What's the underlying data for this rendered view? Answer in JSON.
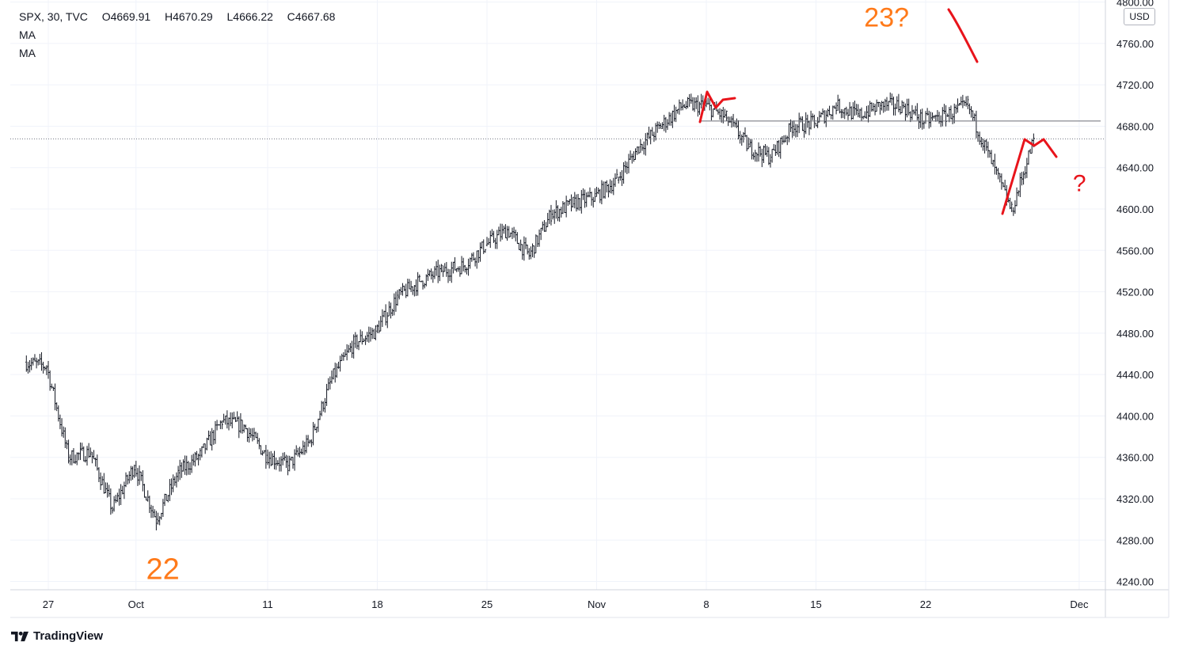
{
  "legend": {
    "symbol": "SPX",
    "interval": "30",
    "source": "TVC",
    "open_label": "O",
    "open": "4669.91",
    "high_label": "H",
    "high": "4670.29",
    "low_label": "L",
    "low": "4666.22",
    "close_label": "C",
    "close": "4667.68",
    "indicators": [
      "MA",
      "MA"
    ]
  },
  "currency": "USD",
  "brand": "TradingView",
  "chart_data": {
    "type": "ohlc",
    "title": "",
    "xlabel": "",
    "ylabel": "",
    "ylim": [
      4232,
      4802
    ],
    "y_ticks": [
      4240,
      4280,
      4320,
      4360,
      4400,
      4440,
      4480,
      4520,
      4560,
      4600,
      4640,
      4680,
      4720,
      4760,
      4800
    ],
    "y_tick_labels": [
      "4240.00",
      "4280.00",
      "4320.00",
      "4360.00",
      "4400.00",
      "4440.00",
      "4480.00",
      "4520.00",
      "4560.00",
      "4600.00",
      "4640.00",
      "4680.00",
      "4720.00",
      "4760.00",
      "4800.00"
    ],
    "x_tick_labels": [
      "27",
      "Oct",
      "11",
      "18",
      "25",
      "Nov",
      "8",
      "15",
      "22",
      "Dec"
    ],
    "grid": true,
    "last_price": 4667.68,
    "horizontal_line": 4685,
    "price_path": [
      {
        "d": "2021-09-24",
        "p": 4452
      },
      {
        "d": "2021-09-27",
        "p": 4448
      },
      {
        "d": "2021-09-28",
        "p": 4360
      },
      {
        "d": "2021-09-29",
        "p": 4365
      },
      {
        "d": "2021-09-30",
        "p": 4310
      },
      {
        "d": "2021-10-01",
        "p": 4352
      },
      {
        "d": "2021-10-04",
        "p": 4300
      },
      {
        "d": "2021-10-05",
        "p": 4345
      },
      {
        "d": "2021-10-06",
        "p": 4362
      },
      {
        "d": "2021-10-07",
        "p": 4395
      },
      {
        "d": "2021-10-08",
        "p": 4390
      },
      {
        "d": "2021-10-11",
        "p": 4362
      },
      {
        "d": "2021-10-12",
        "p": 4352
      },
      {
        "d": "2021-10-13",
        "p": 4375
      },
      {
        "d": "2021-10-14",
        "p": 4436
      },
      {
        "d": "2021-10-15",
        "p": 4470
      },
      {
        "d": "2021-10-18",
        "p": 4482
      },
      {
        "d": "2021-10-19",
        "p": 4515
      },
      {
        "d": "2021-10-20",
        "p": 4530
      },
      {
        "d": "2021-10-21",
        "p": 4540
      },
      {
        "d": "2021-10-22",
        "p": 4545
      },
      {
        "d": "2021-10-25",
        "p": 4565
      },
      {
        "d": "2021-10-26",
        "p": 4580
      },
      {
        "d": "2021-10-27",
        "p": 4555
      },
      {
        "d": "2021-10-28",
        "p": 4595
      },
      {
        "d": "2021-10-29",
        "p": 4605
      },
      {
        "d": "2021-11-01",
        "p": 4612
      },
      {
        "d": "2021-11-02",
        "p": 4628
      },
      {
        "d": "2021-11-03",
        "p": 4660
      },
      {
        "d": "2021-11-04",
        "p": 4680
      },
      {
        "d": "2021-11-05",
        "p": 4700
      },
      {
        "d": "2021-11-08",
        "p": 4700
      },
      {
        "d": "2021-11-09",
        "p": 4688
      },
      {
        "d": "2021-11-10",
        "p": 4660
      },
      {
        "d": "2021-11-11",
        "p": 4650
      },
      {
        "d": "2021-11-12",
        "p": 4680
      },
      {
        "d": "2021-11-15",
        "p": 4683
      },
      {
        "d": "2021-11-16",
        "p": 4700
      },
      {
        "d": "2021-11-17",
        "p": 4690
      },
      {
        "d": "2021-11-18",
        "p": 4700
      },
      {
        "d": "2021-11-19",
        "p": 4700
      },
      {
        "d": "2021-11-22",
        "p": 4685
      },
      {
        "d": "2021-11-23",
        "p": 4690
      },
      {
        "d": "2021-11-24",
        "p": 4700
      },
      {
        "d": "2021-11-26",
        "p": 4598
      },
      {
        "d": "2021-11-29",
        "p": 4667
      }
    ],
    "annotations": [
      {
        "text": "22",
        "color": "#ff7a1a",
        "d": "2021-10-04",
        "p": 4240
      },
      {
        "text": "23?",
        "color": "#ff7a1a",
        "d": "2021-11-19",
        "p": 4790
      },
      {
        "text": "?",
        "color": "#e8141b",
        "d": "2021-12-01",
        "p": 4625
      }
    ]
  }
}
